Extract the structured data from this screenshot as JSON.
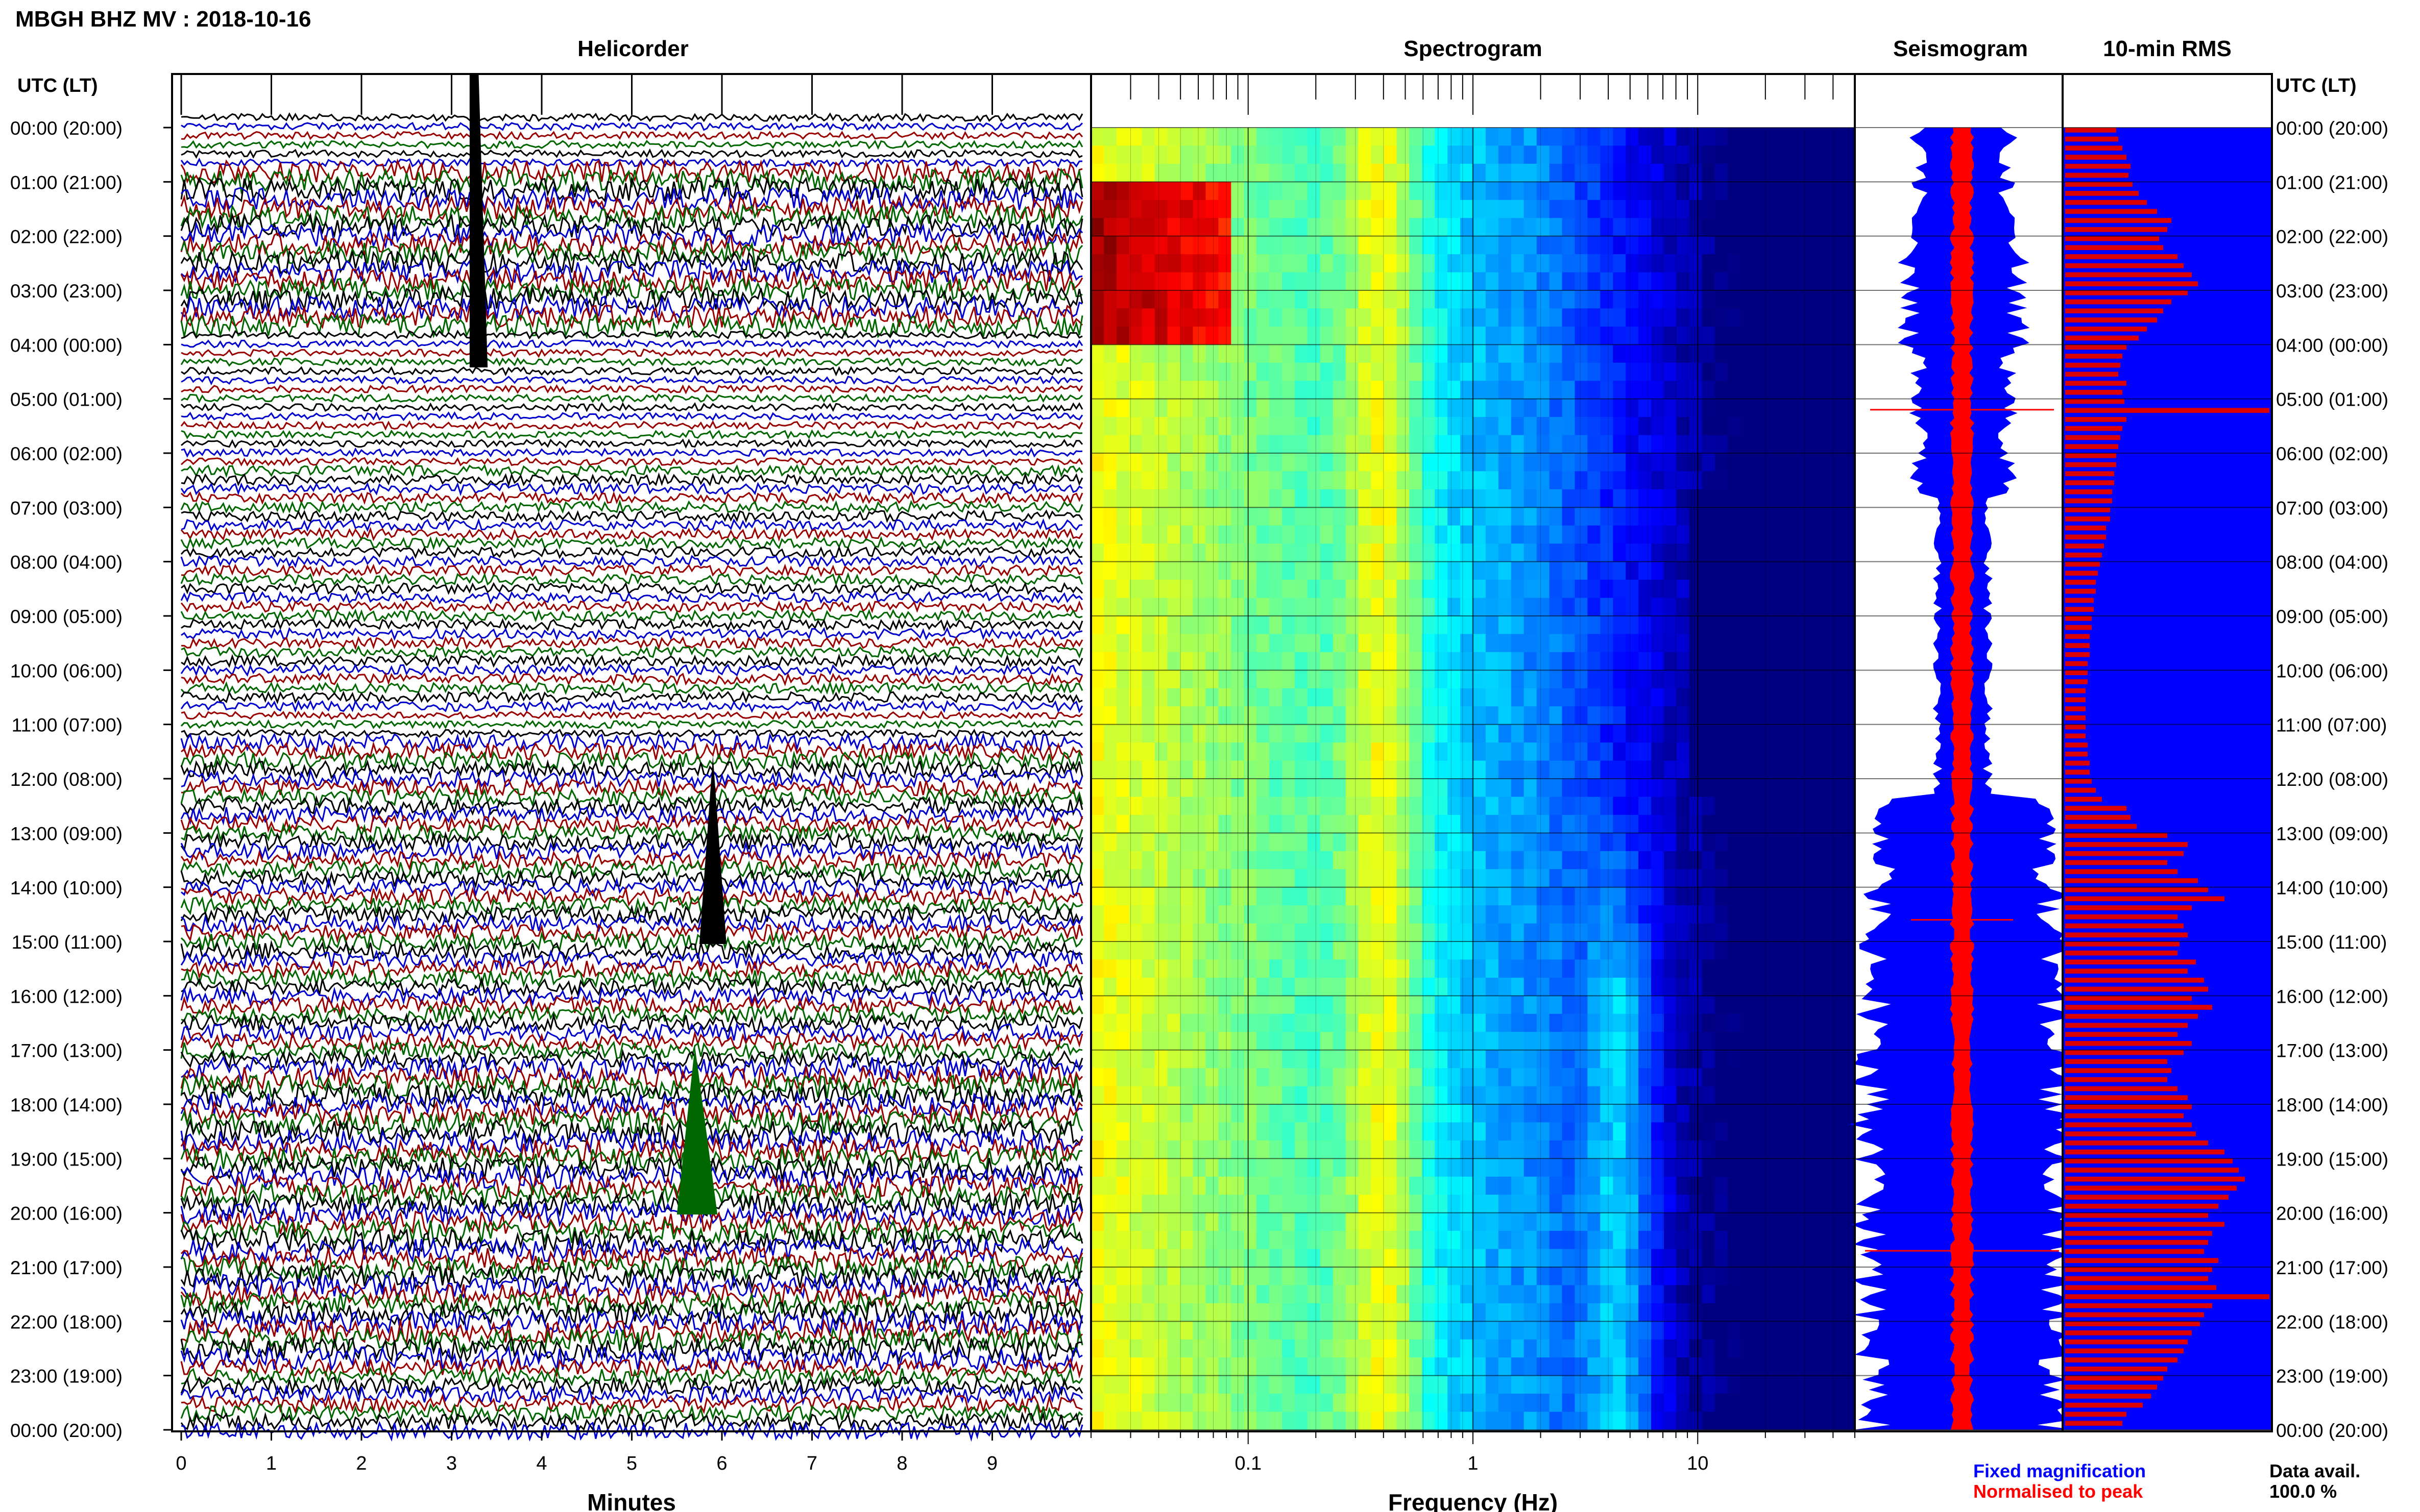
{
  "page_title": "MBGH BHZ MV : 2018-10-16",
  "panels": {
    "helicorder": "Helicorder",
    "spectrogram": "Spectrogram",
    "seismogram": "Seismogram",
    "rms": "10-min RMS"
  },
  "time_axis_header": "UTC (LT)",
  "footer": {
    "legend_blue": "Fixed magnification",
    "legend_red": "Normalised to peak",
    "data_avail_label": "Data avail.",
    "data_avail_value": "100.0 %"
  },
  "colors": {
    "helicorder_traces": [
      "#000000",
      "#0000cc",
      "#990000",
      "#006600"
    ],
    "seismogram_fixed": "#0000ff",
    "seismogram_normalised": "#ff0000",
    "rms_background": "#0000ff",
    "rms_bars": "#dd0000"
  },
  "chart_data": [
    {
      "type": "line",
      "panel": "Helicorder",
      "xlabel": "Minutes",
      "xlim": [
        0,
        10
      ],
      "x_ticks": [
        "0",
        "1",
        "2",
        "3",
        "4",
        "5",
        "6",
        "7",
        "8",
        "9"
      ],
      "y_ticks": [
        "00:00 (20:00)",
        "01:00 (21:00)",
        "02:00 (22:00)",
        "03:00 (23:00)",
        "04:00 (00:00)",
        "05:00 (01:00)",
        "06:00 (02:00)",
        "07:00 (03:00)",
        "08:00 (04:00)",
        "09:00 (05:00)",
        "10:00 (06:00)",
        "11:00 (07:00)",
        "12:00 (08:00)",
        "13:00 (09:00)",
        "14:00 (10:00)",
        "15:00 (11:00)",
        "16:00 (12:00)",
        "17:00 (13:00)",
        "18:00 (14:00)",
        "19:00 (15:00)",
        "20:00 (16:00)",
        "21:00 (17:00)",
        "22:00 (18:00)",
        "23:00 (19:00)",
        "00:00 (20:00)"
      ]
    },
    {
      "type": "heatmap",
      "panel": "Spectrogram",
      "xlabel": "Frequency (Hz)",
      "x_scale": "log",
      "xlim": [
        0.02,
        50
      ],
      "x_ticks": [
        "0.1",
        "1",
        "10"
      ],
      "ylim_hours": [
        0,
        24
      ]
    },
    {
      "type": "area",
      "panel": "Seismogram",
      "ylim_hours": [
        0,
        24
      ]
    },
    {
      "type": "bar",
      "panel": "10-min RMS",
      "orientation": "horizontal",
      "bin_minutes": 10,
      "ylim_hours": [
        0,
        24
      ],
      "xlim": [
        0,
        1
      ],
      "values": [
        0.25,
        0.26,
        0.28,
        0.3,
        0.32,
        0.31,
        0.33,
        0.36,
        0.4,
        0.45,
        0.52,
        0.5,
        0.46,
        0.48,
        0.55,
        0.58,
        0.62,
        0.65,
        0.6,
        0.52,
        0.48,
        0.45,
        0.4,
        0.36,
        0.3,
        0.28,
        0.27,
        0.26,
        0.3,
        0.28,
        0.29,
        1.0,
        0.3,
        0.28,
        0.27,
        0.26,
        0.25,
        0.25,
        0.24,
        0.24,
        0.23,
        0.23,
        0.22,
        0.22,
        0.2,
        0.2,
        0.19,
        0.18,
        0.17,
        0.16,
        0.15,
        0.15,
        0.14,
        0.14,
        0.13,
        0.13,
        0.12,
        0.12,
        0.12,
        0.11,
        0.11,
        0.11,
        0.1,
        0.1,
        0.1,
        0.1,
        0.1,
        0.1,
        0.11,
        0.11,
        0.12,
        0.12,
        0.13,
        0.15,
        0.18,
        0.3,
        0.32,
        0.35,
        0.5,
        0.6,
        0.58,
        0.5,
        0.55,
        0.65,
        0.7,
        0.78,
        0.62,
        0.55,
        0.58,
        0.6,
        0.56,
        0.55,
        0.64,
        0.6,
        0.68,
        0.7,
        0.62,
        0.72,
        0.65,
        0.6,
        0.55,
        0.62,
        0.58,
        0.5,
        0.52,
        0.5,
        0.55,
        0.6,
        0.62,
        0.58,
        0.62,
        0.64,
        0.7,
        0.78,
        0.82,
        0.85,
        0.88,
        0.84,
        0.8,
        0.75,
        0.7,
        0.78,
        0.72,
        0.7,
        0.68,
        0.75,
        0.72,
        0.7,
        0.74,
        1.0,
        0.72,
        0.68,
        0.66,
        0.62,
        0.6,
        0.58,
        0.55,
        0.5,
        0.48,
        0.45,
        0.42,
        0.38,
        0.3,
        0.28
      ]
    }
  ]
}
